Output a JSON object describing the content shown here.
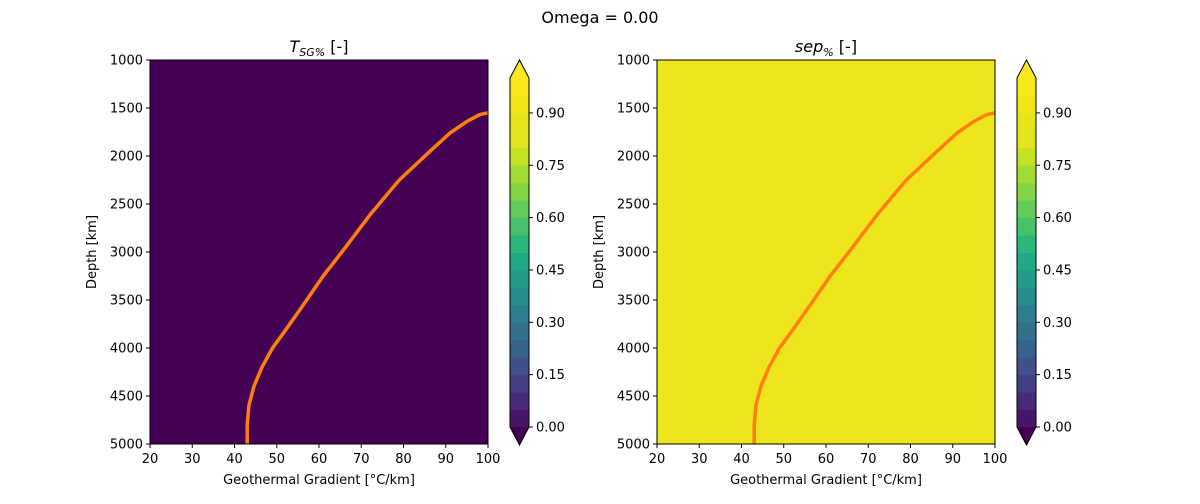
{
  "figure": {
    "title": "Omega = 0.00"
  },
  "chart_data": [
    {
      "type": "heatmap",
      "title_main": "T",
      "title_sub": "SG%",
      "title_suffix": " [-]",
      "xlabel": "Geothermal Gradient [°C/km]",
      "ylabel": "Depth [km]",
      "xlim": [
        20,
        100
      ],
      "ylim": [
        5000,
        1000
      ],
      "y_inverted": true,
      "xticks": [
        20,
        30,
        40,
        50,
        60,
        70,
        80,
        90,
        100
      ],
      "yticks": [
        1000,
        1500,
        2000,
        2500,
        3000,
        3500,
        4000,
        4500,
        5000
      ],
      "field_value": 0.0,
      "field_color": "#440154",
      "curve": {
        "color": "#ff7f0e",
        "x": [
          43.0,
          43.0,
          43.4,
          44.6,
          46.5,
          49.0,
          52.3,
          56.3,
          61.0,
          66.3,
          72.3,
          79.0,
          86.3,
          91.0,
          95.0,
          98.0,
          100.0
        ],
        "y": [
          5000,
          4800,
          4600,
          4400,
          4200,
          4000,
          3800,
          3550,
          3250,
          2950,
          2600,
          2250,
          1950,
          1760,
          1640,
          1570,
          1550
        ]
      },
      "colorbar": {
        "extend": "both",
        "ticks": [
          0.0,
          0.15,
          0.3,
          0.45,
          0.6,
          0.75,
          0.9
        ],
        "tick_labels": [
          "0.00",
          "0.15",
          "0.30",
          "0.45",
          "0.60",
          "0.75",
          "0.90"
        ],
        "levels": [
          0.0,
          0.05,
          0.1,
          0.15,
          0.2,
          0.25,
          0.3,
          0.35,
          0.4,
          0.45,
          0.5,
          0.55,
          0.6,
          0.65,
          0.7,
          0.75,
          0.8,
          0.85,
          0.9,
          0.95,
          1.0
        ],
        "colors": [
          "#461667",
          "#472b79",
          "#443e84",
          "#3f508a",
          "#38618c",
          "#32708e",
          "#2c7f8e",
          "#278d8d",
          "#229b8a",
          "#21a884",
          "#2db679",
          "#46c26a",
          "#63cc58",
          "#82d445",
          "#a2dc32",
          "#c4e224",
          "#e1e41e",
          "#e6e419",
          "#f0e617",
          "#f7e81a"
        ],
        "under_color": "#440154",
        "over_color": "#fde725"
      }
    },
    {
      "type": "heatmap",
      "title_main": "sep",
      "title_sub": "%",
      "title_suffix": " [-]",
      "xlabel": "Geothermal Gradient [°C/km]",
      "ylabel": "Depth [km]",
      "xlim": [
        20,
        100
      ],
      "ylim": [
        5000,
        1000
      ],
      "y_inverted": true,
      "xticks": [
        20,
        30,
        40,
        50,
        60,
        70,
        80,
        90,
        100
      ],
      "yticks": [
        1000,
        1500,
        2000,
        2500,
        3000,
        3500,
        4000,
        4500,
        5000
      ],
      "field_value": 1.0,
      "field_color": "#efe51c",
      "curve": {
        "color": "#ff7f0e",
        "x": [
          43.0,
          43.0,
          43.4,
          44.6,
          46.5,
          49.0,
          52.3,
          56.3,
          61.0,
          66.3,
          72.3,
          79.0,
          86.3,
          91.0,
          95.0,
          98.0,
          100.0
        ],
        "y": [
          5000,
          4800,
          4600,
          4400,
          4200,
          4000,
          3800,
          3550,
          3250,
          2950,
          2600,
          2250,
          1950,
          1760,
          1640,
          1570,
          1550
        ]
      },
      "colorbar": {
        "extend": "both",
        "ticks": [
          0.0,
          0.15,
          0.3,
          0.45,
          0.6,
          0.75,
          0.9
        ],
        "tick_labels": [
          "0.00",
          "0.15",
          "0.30",
          "0.45",
          "0.60",
          "0.75",
          "0.90"
        ],
        "levels": [
          0.0,
          0.05,
          0.1,
          0.15,
          0.2,
          0.25,
          0.3,
          0.35,
          0.4,
          0.45,
          0.5,
          0.55,
          0.6,
          0.65,
          0.7,
          0.75,
          0.8,
          0.85,
          0.9,
          0.95,
          1.0
        ],
        "colors": [
          "#461667",
          "#472b79",
          "#443e84",
          "#3f508a",
          "#38618c",
          "#32708e",
          "#2c7f8e",
          "#278d8d",
          "#229b8a",
          "#21a884",
          "#2db679",
          "#46c26a",
          "#63cc58",
          "#82d445",
          "#a2dc32",
          "#c4e224",
          "#e1e41e",
          "#e6e419",
          "#f0e617",
          "#f7e81a"
        ],
        "under_color": "#440154",
        "over_color": "#fde725"
      }
    }
  ]
}
